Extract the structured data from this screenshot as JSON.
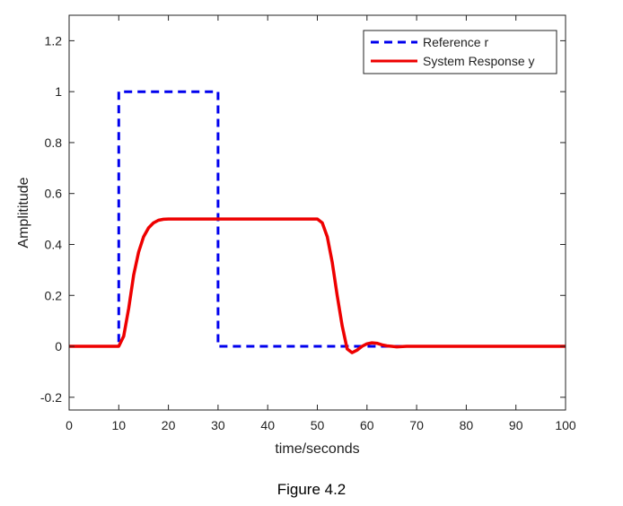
{
  "chart_data": {
    "type": "line",
    "title": "",
    "xlabel": "time/seconds",
    "ylabel": "Amplititude",
    "xlim": [
      0,
      100
    ],
    "ylim": [
      -0.25,
      1.3
    ],
    "xticks": [
      0,
      10,
      20,
      30,
      40,
      50,
      60,
      70,
      80,
      90,
      100
    ],
    "yticks": [
      -0.2,
      0,
      0.2,
      0.4,
      0.6,
      0.8,
      1,
      1.2
    ],
    "xtick_labels": [
      "0",
      "10",
      "20",
      "30",
      "40",
      "50",
      "60",
      "70",
      "80",
      "90",
      "100"
    ],
    "ytick_labels": [
      "-0.2",
      "0",
      "0.2",
      "0.4",
      "0.6",
      "0.8",
      "1",
      "1.2"
    ],
    "grid": false,
    "legend_position": "top-right",
    "series": [
      {
        "name": "Reference r",
        "style": "dashed",
        "color": "#0000ee",
        "x": [
          0,
          10,
          10,
          30,
          30,
          100
        ],
        "y": [
          0,
          0,
          1,
          1,
          0,
          0
        ]
      },
      {
        "name": "System Response y",
        "style": "solid",
        "color": "#ee0000",
        "x": [
          0,
          10,
          11,
          12,
          13,
          14,
          15,
          16,
          17,
          18,
          19,
          20,
          22,
          25,
          30,
          35,
          40,
          45,
          50,
          51,
          52,
          53,
          54,
          55,
          56,
          57,
          58,
          59,
          60,
          61,
          62,
          63,
          64,
          65,
          66,
          68,
          70,
          100
        ],
        "y": [
          0,
          0,
          0.04,
          0.15,
          0.28,
          0.37,
          0.43,
          0.465,
          0.485,
          0.495,
          0.499,
          0.5,
          0.5,
          0.5,
          0.5,
          0.5,
          0.5,
          0.5,
          0.5,
          0.485,
          0.43,
          0.33,
          0.2,
          0.08,
          -0.01,
          -0.025,
          -0.015,
          0.0,
          0.01,
          0.014,
          0.012,
          0.006,
          0.002,
          0.0,
          -0.002,
          0.0,
          0.0,
          0.0
        ]
      }
    ]
  },
  "caption": "Figure 4.2"
}
